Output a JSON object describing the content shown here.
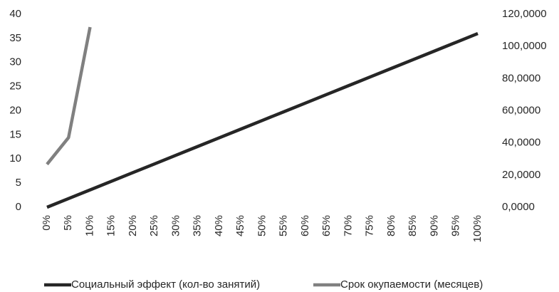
{
  "chart_data": {
    "type": "line",
    "categories": [
      "0%",
      "5%",
      "10%",
      "15%",
      "20%",
      "25%",
      "30%",
      "35%",
      "40%",
      "45%",
      "50%",
      "55%",
      "60%",
      "65%",
      "70%",
      "75%",
      "80%",
      "85%",
      "90%",
      "95%",
      "100%"
    ],
    "series": [
      {
        "name": "Социальный эффект (кол-во занятий)",
        "color": "#262626",
        "values": [
          0,
          1.8,
          3.6,
          5.4,
          7.2,
          9,
          10.8,
          12.6,
          14.4,
          16.2,
          18,
          19.8,
          21.6,
          23.4,
          25.2,
          27,
          28.8,
          30.6,
          32.4,
          34.2,
          36
        ]
      },
      {
        "name": "Срок окупаемости (месяцев)",
        "color": "#808080",
        "axis": "y2",
        "values": [
          26.7,
          43.3,
          112,
          null,
          null,
          null,
          null,
          null,
          null,
          null,
          null,
          null,
          null,
          null,
          null,
          null,
          null,
          null,
          null,
          null,
          null
        ]
      }
    ],
    "ylim": [
      0,
      40
    ],
    "yticks": [
      0,
      5,
      10,
      15,
      20,
      25,
      30,
      35,
      40
    ],
    "y2lim": [
      0,
      120
    ],
    "y2ticks": [
      {
        "value": 0,
        "label": "0,0000"
      },
      {
        "value": 20,
        "label": "20,0000"
      },
      {
        "value": 40,
        "label": "40,0000"
      },
      {
        "value": 60,
        "label": "60,0000"
      },
      {
        "value": 80,
        "label": "80,0000"
      },
      {
        "value": 100,
        "label": "100,0000"
      },
      {
        "value": 120,
        "label": "120,0000"
      }
    ],
    "grid": false,
    "legend": "bottom"
  }
}
